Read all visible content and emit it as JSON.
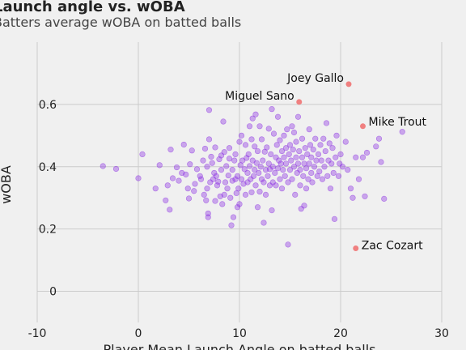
{
  "chart_data": {
    "type": "scatter",
    "title": "Launch angle vs. wOBA",
    "subtitle": "Batters average wOBA on batted balls",
    "xlabel": "Player Mean Launch Angle on batted balls",
    "ylabel": "wOBA",
    "xlim": [
      -10,
      30
    ],
    "ylim": [
      -0.1,
      0.8
    ],
    "xticks": [
      -10,
      0,
      10,
      20,
      30
    ],
    "yticks": [
      0,
      0.2,
      0.4,
      0.6
    ],
    "xtick_labels": [
      "-10",
      "0",
      "10",
      "20",
      "30"
    ],
    "ytick_labels": [
      "0",
      "0.2",
      "0.4",
      "0.6"
    ],
    "grid": true,
    "point_color": "#8a2be2",
    "highlight_color": "#f08080",
    "background": "#f0f0f0",
    "grid_color": "#cbcbcb",
    "highlighted": [
      {
        "label": "Joey Gallo",
        "x": 20.8,
        "y": 0.665
      },
      {
        "label": "Miguel Sano",
        "x": 15.9,
        "y": 0.608
      },
      {
        "label": "Mike Trout",
        "x": 22.2,
        "y": 0.53
      },
      {
        "label": "Zac Cozart",
        "x": 21.5,
        "y": 0.138
      }
    ],
    "points": [
      [
        -3.5,
        0.402
      ],
      [
        -2.2,
        0.393
      ],
      [
        0.0,
        0.363
      ],
      [
        0.4,
        0.44
      ],
      [
        1.7,
        0.33
      ],
      [
        2.1,
        0.405
      ],
      [
        2.7,
        0.292
      ],
      [
        2.9,
        0.34
      ],
      [
        3.1,
        0.262
      ],
      [
        3.2,
        0.455
      ],
      [
        3.4,
        0.363
      ],
      [
        3.8,
        0.398
      ],
      [
        4.0,
        0.355
      ],
      [
        4.3,
        0.38
      ],
      [
        4.5,
        0.471
      ],
      [
        4.7,
        0.375
      ],
      [
        4.9,
        0.33
      ],
      [
        5.0,
        0.298
      ],
      [
        5.1,
        0.408
      ],
      [
        5.3,
        0.452
      ],
      [
        5.5,
        0.322
      ],
      [
        5.6,
        0.345
      ],
      [
        5.8,
        0.392
      ],
      [
        6.1,
        0.37
      ],
      [
        6.2,
        0.36
      ],
      [
        6.4,
        0.42
      ],
      [
        6.5,
        0.31
      ],
      [
        6.6,
        0.458
      ],
      [
        6.7,
        0.292
      ],
      [
        6.8,
        0.33
      ],
      [
        6.8,
        0.4
      ],
      [
        6.9,
        0.25
      ],
      [
        6.9,
        0.238
      ],
      [
        7.0,
        0.582
      ],
      [
        7.0,
        0.488
      ],
      [
        7.1,
        0.35
      ],
      [
        7.2,
        0.432
      ],
      [
        7.3,
        0.412
      ],
      [
        7.4,
        0.36
      ],
      [
        7.5,
        0.38
      ],
      [
        7.6,
        0.29
      ],
      [
        7.6,
        0.462
      ],
      [
        7.7,
        0.37
      ],
      [
        7.8,
        0.34
      ],
      [
        7.9,
        0.352
      ],
      [
        8.0,
        0.424
      ],
      [
        8.1,
        0.305
      ],
      [
        8.2,
        0.39
      ],
      [
        8.2,
        0.436
      ],
      [
        8.3,
        0.28
      ],
      [
        8.4,
        0.545
      ],
      [
        8.5,
        0.31
      ],
      [
        8.5,
        0.447
      ],
      [
        8.6,
        0.35
      ],
      [
        8.7,
        0.402
      ],
      [
        8.8,
        0.33
      ],
      [
        8.9,
        0.372
      ],
      [
        9.0,
        0.46
      ],
      [
        9.0,
        0.426
      ],
      [
        9.1,
        0.3
      ],
      [
        9.2,
        0.212
      ],
      [
        9.3,
        0.355
      ],
      [
        9.3,
        0.39
      ],
      [
        9.4,
        0.238
      ],
      [
        9.5,
        0.42
      ],
      [
        9.6,
        0.44
      ],
      [
        9.6,
        0.36
      ],
      [
        9.7,
        0.315
      ],
      [
        9.8,
        0.27
      ],
      [
        9.8,
        0.37
      ],
      [
        9.9,
        0.33
      ],
      [
        10.0,
        0.28
      ],
      [
        10.0,
        0.48
      ],
      [
        10.1,
        0.405
      ],
      [
        10.2,
        0.36
      ],
      [
        10.2,
        0.5
      ],
      [
        10.3,
        0.42
      ],
      [
        10.4,
        0.345
      ],
      [
        10.5,
        0.392
      ],
      [
        10.6,
        0.47
      ],
      [
        10.6,
        0.31
      ],
      [
        10.7,
        0.428
      ],
      [
        10.8,
        0.38
      ],
      [
        10.8,
        0.35
      ],
      [
        10.9,
        0.44
      ],
      [
        11.0,
        0.53
      ],
      [
        11.0,
        0.402
      ],
      [
        11.1,
        0.36
      ],
      [
        11.2,
        0.488
      ],
      [
        11.2,
        0.318
      ],
      [
        11.3,
        0.555
      ],
      [
        11.3,
        0.42
      ],
      [
        11.4,
        0.37
      ],
      [
        11.5,
        0.465
      ],
      [
        11.5,
        0.39
      ],
      [
        11.6,
        0.34
      ],
      [
        11.6,
        0.568
      ],
      [
        11.7,
        0.412
      ],
      [
        11.8,
        0.27
      ],
      [
        11.8,
        0.45
      ],
      [
        11.9,
        0.38
      ],
      [
        12.0,
        0.53
      ],
      [
        12.0,
        0.32
      ],
      [
        12.1,
        0.4
      ],
      [
        12.2,
        0.36
      ],
      [
        12.2,
        0.488
      ],
      [
        12.3,
        0.42
      ],
      [
        12.4,
        0.22
      ],
      [
        12.4,
        0.35
      ],
      [
        12.5,
        0.448
      ],
      [
        12.6,
        0.39
      ],
      [
        12.6,
        0.31
      ],
      [
        12.7,
        0.462
      ],
      [
        12.8,
        0.37
      ],
      [
        12.9,
        0.41
      ],
      [
        12.9,
        0.522
      ],
      [
        13.0,
        0.34
      ],
      [
        13.0,
        0.392
      ],
      [
        13.1,
        0.44
      ],
      [
        13.2,
        0.26
      ],
      [
        13.2,
        0.585
      ],
      [
        13.3,
        0.4
      ],
      [
        13.3,
        0.35
      ],
      [
        13.4,
        0.506
      ],
      [
        13.5,
        0.38
      ],
      [
        13.6,
        0.43
      ],
      [
        13.6,
        0.34
      ],
      [
        13.7,
        0.47
      ],
      [
        13.8,
        0.395
      ],
      [
        13.8,
        0.56
      ],
      [
        13.9,
        0.42
      ],
      [
        14.0,
        0.36
      ],
      [
        14.0,
        0.485
      ],
      [
        14.1,
        0.41
      ],
      [
        14.2,
        0.33
      ],
      [
        14.2,
        0.45
      ],
      [
        14.3,
        0.39
      ],
      [
        14.4,
        0.5
      ],
      [
        14.4,
        0.43
      ],
      [
        14.5,
        0.37
      ],
      [
        14.6,
        0.46
      ],
      [
        14.6,
        0.41
      ],
      [
        14.7,
        0.52
      ],
      [
        14.8,
        0.35
      ],
      [
        14.8,
        0.15
      ],
      [
        14.9,
        0.44
      ],
      [
        15.0,
        0.39
      ],
      [
        15.0,
        0.47
      ],
      [
        15.1,
        0.42
      ],
      [
        15.2,
        0.53
      ],
      [
        15.2,
        0.36
      ],
      [
        15.3,
        0.455
      ],
      [
        15.4,
        0.4
      ],
      [
        15.4,
        0.51
      ],
      [
        15.5,
        0.31
      ],
      [
        15.6,
        0.43
      ],
      [
        15.6,
        0.48
      ],
      [
        15.7,
        0.38
      ],
      [
        15.8,
        0.56
      ],
      [
        15.8,
        0.41
      ],
      [
        15.9,
        0.45
      ],
      [
        16.0,
        0.34
      ],
      [
        16.0,
        0.39
      ],
      [
        16.1,
        0.265
      ],
      [
        16.2,
        0.43
      ],
      [
        16.2,
        0.49
      ],
      [
        16.3,
        0.37
      ],
      [
        16.4,
        0.275
      ],
      [
        16.4,
        0.41
      ],
      [
        16.5,
        0.46
      ],
      [
        16.6,
        0.33
      ],
      [
        16.6,
        0.395
      ],
      [
        16.7,
        0.44
      ],
      [
        16.8,
        0.36
      ],
      [
        16.9,
        0.52
      ],
      [
        16.9,
        0.41
      ],
      [
        17.0,
        0.47
      ],
      [
        17.1,
        0.38
      ],
      [
        17.1,
        0.43
      ],
      [
        17.2,
        0.35
      ],
      [
        17.3,
        0.455
      ],
      [
        17.4,
        0.4
      ],
      [
        17.5,
        0.49
      ],
      [
        17.6,
        0.42
      ],
      [
        17.7,
        0.37
      ],
      [
        17.8,
        0.44
      ],
      [
        17.9,
        0.385
      ],
      [
        18.0,
        0.47
      ],
      [
        18.1,
        0.42
      ],
      [
        18.2,
        0.36
      ],
      [
        18.3,
        0.49
      ],
      [
        18.4,
        0.4
      ],
      [
        18.5,
        0.45
      ],
      [
        18.6,
        0.54
      ],
      [
        18.7,
        0.37
      ],
      [
        18.8,
        0.42
      ],
      [
        18.9,
        0.475
      ],
      [
        19.0,
        0.33
      ],
      [
        19.1,
        0.41
      ],
      [
        19.2,
        0.46
      ],
      [
        19.3,
        0.38
      ],
      [
        19.4,
        0.232
      ],
      [
        19.5,
        0.43
      ],
      [
        19.6,
        0.5
      ],
      [
        19.8,
        0.37
      ],
      [
        19.9,
        0.41
      ],
      [
        20.0,
        0.44
      ],
      [
        20.2,
        0.4
      ],
      [
        20.5,
        0.48
      ],
      [
        20.7,
        0.39
      ],
      [
        21.0,
        0.33
      ],
      [
        21.2,
        0.3
      ],
      [
        21.5,
        0.43
      ],
      [
        21.8,
        0.36
      ],
      [
        22.2,
        0.43
      ],
      [
        22.4,
        0.305
      ],
      [
        22.6,
        0.445
      ],
      [
        23.5,
        0.465
      ],
      [
        23.8,
        0.49
      ],
      [
        24.0,
        0.415
      ],
      [
        24.3,
        0.297
      ],
      [
        26.1,
        0.512
      ]
    ]
  }
}
